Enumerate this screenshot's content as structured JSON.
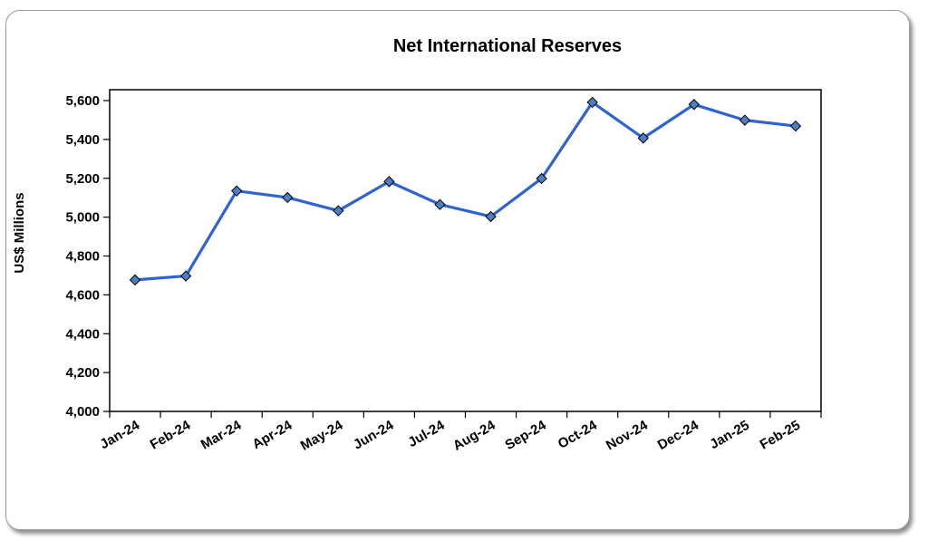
{
  "chart_data": {
    "type": "line",
    "title": "Net International Reserves",
    "xlabel": "",
    "ylabel": "US$ Millions",
    "ylim": [
      4000,
      5700
    ],
    "yticks": [
      4000,
      4200,
      4400,
      4600,
      4800,
      5000,
      5200,
      5400,
      5600
    ],
    "ytick_labels": [
      "4,000",
      "4,200",
      "4,400",
      "4,600",
      "4,800",
      "5,000",
      "5,200",
      "5,400",
      "5,600"
    ],
    "grid": false,
    "legend": "none",
    "categories": [
      "Jan-24",
      "Feb-24",
      "Mar-24",
      "Apr-24",
      "May-24",
      "Jun-24",
      "Jul-24",
      "Aug-24",
      "Sep-24",
      "Oct-24",
      "Nov-24",
      "Dec-24",
      "Jan-25",
      "Feb-25"
    ],
    "series": [
      {
        "values": [
          4677,
          4697,
          5135,
          5101,
          5033,
          5183,
          5065,
          5003,
          5199,
          5591,
          5407,
          5580,
          5499,
          5469
        ],
        "color": "#2e63d6",
        "marker_color": "#4a7fc1"
      }
    ]
  }
}
